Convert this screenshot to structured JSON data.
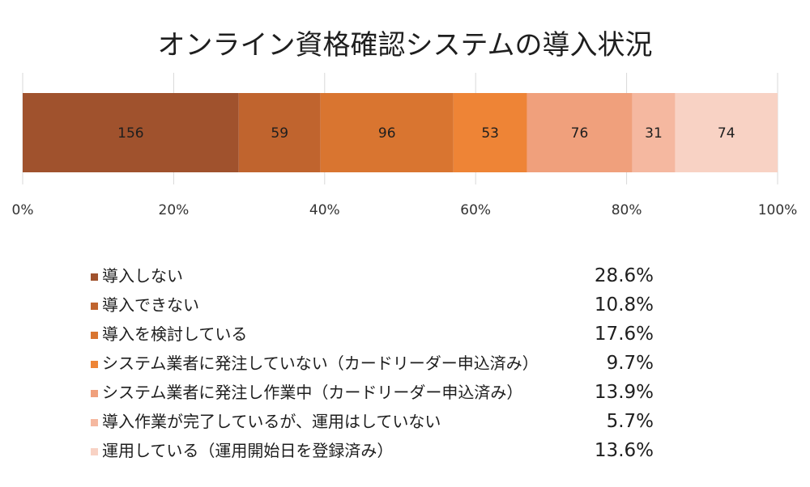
{
  "chart_data": {
    "type": "bar",
    "orientation": "horizontal",
    "stacked": "percent",
    "title": "オンライン資格確認システムの導入状況",
    "xlim": [
      0,
      100
    ],
    "x_ticks": [
      "0%",
      "20%",
      "40%",
      "60%",
      "80%",
      "100%"
    ],
    "grid": true,
    "legend_position": "bottom",
    "series": [
      {
        "name": "導入しない",
        "value": 156,
        "percent": "28.6%",
        "color": "#a0522d"
      },
      {
        "name": "導入できない",
        "value": 59,
        "percent": "10.8%",
        "color": "#c0642e"
      },
      {
        "name": "導入を検討している",
        "value": 96,
        "percent": "17.6%",
        "color": "#d97530"
      },
      {
        "name": "システム業者に発注していない（カードリーダー申込済み）",
        "value": 53,
        "percent": "9.7%",
        "color": "#ee8436"
      },
      {
        "name": "システム業者に発注し作業中（カードリーダー申込済み）",
        "value": 76,
        "percent": "13.9%",
        "color": "#f0a07c"
      },
      {
        "name": "導入作業が完了しているが、運用はしていない",
        "value": 31,
        "percent": "5.7%",
        "color": "#f5b8a0"
      },
      {
        "name": "運用している（運用開始日を登録済み）",
        "value": 74,
        "percent": "13.6%",
        "color": "#f8d2c4"
      }
    ]
  }
}
